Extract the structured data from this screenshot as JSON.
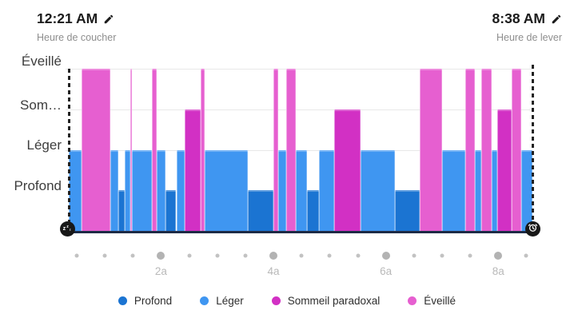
{
  "header": {
    "bedtime": {
      "time": "12:21 AM",
      "label": "Heure de coucher",
      "edit_icon": "pencil-icon"
    },
    "wakeup": {
      "time": "8:38 AM",
      "label": "Heure de lever",
      "edit_icon": "pencil-icon"
    }
  },
  "chart_data": {
    "type": "bar",
    "description": "Hypnogram of sleep stages between bedtime 12:21 AM and wake time 8:38 AM; bar height encodes stage level",
    "y_axis": {
      "labels": [
        "Éveillé",
        "Som…",
        "Léger",
        "Profond"
      ]
    },
    "gridline_pcts": [
      0,
      24.8,
      49.8
    ],
    "x_axis": {
      "tick_labels": [
        "2a",
        "4a",
        "6a",
        "8a"
      ],
      "dot_count": 17,
      "big_dot_indices": [
        3,
        7,
        11,
        15
      ]
    },
    "stages": {
      "eveille": {
        "label": "Éveillé",
        "color": "#e65fd0",
        "height_pct": 100
      },
      "paradoxal": {
        "label": "Sommeil paradoxal",
        "color": "#d230c4",
        "height_pct": 75.2
      },
      "leger": {
        "label": "Léger",
        "color": "#3f96f1",
        "height_pct": 50.2
      },
      "profond": {
        "label": "Profond",
        "color": "#1b74d2",
        "height_pct": 25.5
      }
    },
    "segments": [
      {
        "stage": "leger",
        "start": 0,
        "end": 2.76
      },
      {
        "stage": "eveille",
        "start": 2.76,
        "end": 9.02
      },
      {
        "stage": "leger",
        "start": 9.02,
        "end": 10.69
      },
      {
        "stage": "profond",
        "start": 10.69,
        "end": 12.07
      },
      {
        "stage": "leger",
        "start": 12.07,
        "end": 13.22
      },
      {
        "stage": "eveille",
        "start": 13.22,
        "end": 13.62
      },
      {
        "stage": "leger",
        "start": 13.62,
        "end": 17.93
      },
      {
        "stage": "eveille",
        "start": 17.93,
        "end": 18.97
      },
      {
        "stage": "leger",
        "start": 18.97,
        "end": 20.81
      },
      {
        "stage": "profond",
        "start": 20.81,
        "end": 23.19
      },
      {
        "stage": "leger",
        "start": 23.19,
        "end": 24.95
      },
      {
        "stage": "paradoxal",
        "start": 24.95,
        "end": 28.45
      },
      {
        "stage": "eveille",
        "start": 28.45,
        "end": 29.26
      },
      {
        "stage": "leger",
        "start": 29.26,
        "end": 38.62
      },
      {
        "stage": "profond",
        "start": 38.62,
        "end": 44.09
      },
      {
        "stage": "eveille",
        "start": 44.09,
        "end": 45.22
      },
      {
        "stage": "leger",
        "start": 45.22,
        "end": 46.95
      },
      {
        "stage": "eveille",
        "start": 46.95,
        "end": 48.97
      },
      {
        "stage": "leger",
        "start": 48.97,
        "end": 51.38
      },
      {
        "stage": "profond",
        "start": 51.38,
        "end": 53.97
      },
      {
        "stage": "leger",
        "start": 53.97,
        "end": 57.19
      },
      {
        "stage": "paradoxal",
        "start": 57.19,
        "end": 62.93
      },
      {
        "stage": "leger",
        "start": 62.93,
        "end": 70.34
      },
      {
        "stage": "profond",
        "start": 70.34,
        "end": 75.69
      },
      {
        "stage": "eveille",
        "start": 75.69,
        "end": 80.57
      },
      {
        "stage": "leger",
        "start": 80.57,
        "end": 85.47
      },
      {
        "stage": "eveille",
        "start": 85.47,
        "end": 87.59
      },
      {
        "stage": "leger",
        "start": 87.59,
        "end": 89.02
      },
      {
        "stage": "eveille",
        "start": 89.02,
        "end": 91.21
      },
      {
        "stage": "leger",
        "start": 91.21,
        "end": 92.36
      },
      {
        "stage": "paradoxal",
        "start": 92.36,
        "end": 95.52
      },
      {
        "stage": "eveille",
        "start": 95.52,
        "end": 97.53
      },
      {
        "stage": "leger",
        "start": 97.53,
        "end": 100
      }
    ],
    "markers": {
      "start_icon": "sleep-zzz-icon",
      "end_icon": "alarm-clock-icon"
    }
  },
  "legend": {
    "items": [
      {
        "label": "Profond",
        "color": "#1b74d2"
      },
      {
        "label": "Léger",
        "color": "#3f96f1"
      },
      {
        "label": "Sommeil paradoxal",
        "color": "#d230c4"
      },
      {
        "label": "Éveillé",
        "color": "#e65fd0"
      }
    ]
  }
}
